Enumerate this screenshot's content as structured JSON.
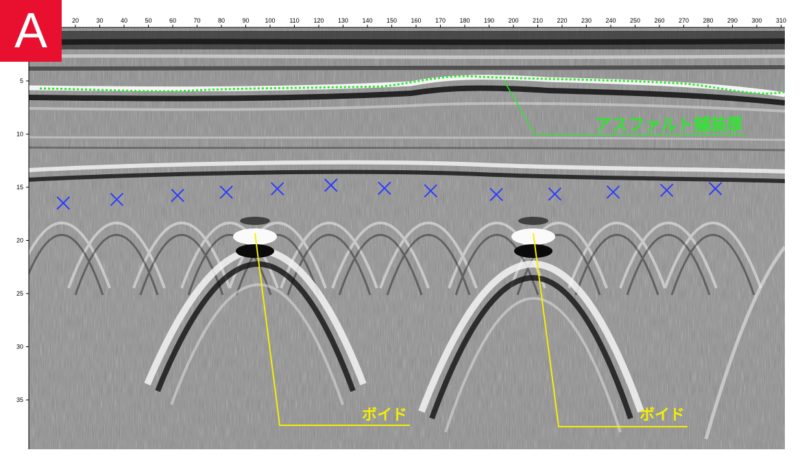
{
  "panel_label": "A",
  "axes": {
    "x_ticks": [
      "20",
      "30",
      "40",
      "50",
      "60",
      "70",
      "80",
      "90",
      "100",
      "110",
      "120",
      "130",
      "140",
      "150",
      "160",
      "170",
      "180",
      "190",
      "200",
      "210",
      "220",
      "230",
      "240",
      "250",
      "260",
      "270",
      "280",
      "290",
      "300",
      "310"
    ],
    "y_ticks": [
      "5",
      "10",
      "15",
      "20",
      "25",
      "30",
      "35"
    ]
  },
  "annotations": {
    "asphalt_label": "アスファルト舗装厚",
    "void_label_1": "ボイド",
    "void_label_2": "ボイド"
  },
  "colors": {
    "surface_line": "#2ee62e",
    "rebar_marker": "#2a3cff",
    "void_leader": "#f5f000",
    "badge": "#e8102e"
  },
  "rebar_markers_x": [
    15,
    37,
    62,
    82,
    103,
    125,
    147,
    166,
    193,
    217,
    241,
    263,
    283
  ]
}
